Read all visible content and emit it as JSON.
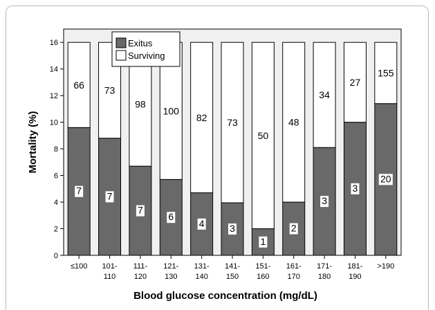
{
  "chart_data": {
    "type": "bar",
    "stacked": true,
    "categories": [
      [
        "≤100"
      ],
      [
        "101-",
        "110"
      ],
      [
        "111-",
        "120"
      ],
      [
        "121-",
        "130"
      ],
      [
        "131-",
        "140"
      ],
      [
        "141-",
        "150"
      ],
      [
        "151-",
        "160"
      ],
      [
        "161-",
        "170"
      ],
      [
        "171-",
        "180"
      ],
      [
        "181-",
        "190"
      ],
      [
        ">190"
      ]
    ],
    "series": [
      {
        "name": "Exitus",
        "values": [
          9.6,
          8.8,
          6.7,
          5.7,
          4.7,
          3.95,
          2.0,
          4.0,
          8.1,
          10.0,
          11.4
        ],
        "labels": [
          "7",
          "7",
          "7",
          "6",
          "4",
          "3",
          "1",
          "2",
          "3",
          "3",
          "20"
        ],
        "color": "#696969"
      },
      {
        "name": "Surviving",
        "values": [
          6.4,
          7.2,
          9.3,
          10.3,
          11.3,
          12.05,
          14.0,
          12.0,
          7.9,
          6.0,
          4.6
        ],
        "labels": [
          "66",
          "73",
          "98",
          "100",
          "82",
          "73",
          "50",
          "48",
          "34",
          "27",
          "155"
        ],
        "color": "#ffffff"
      }
    ],
    "xlabel": "Blood glucose concentration (mg/dL)",
    "ylabel": "Mortality (%)",
    "ylim": [
      0,
      17
    ],
    "yticks": [
      0,
      2,
      4,
      6,
      8,
      10,
      12,
      14,
      16
    ],
    "legend_position": "top-left",
    "plot_background": "#f0f0f0"
  }
}
